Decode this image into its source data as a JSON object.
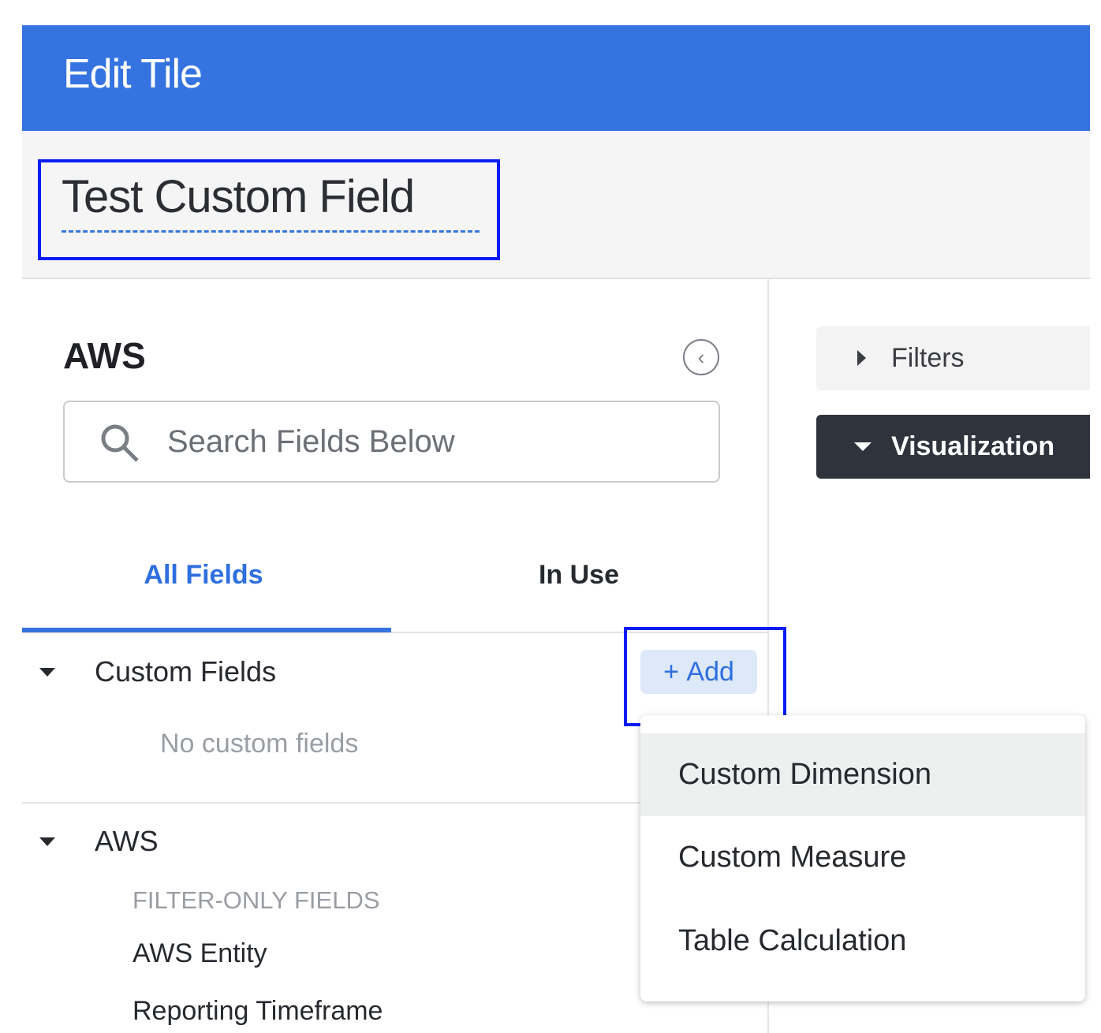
{
  "header": {
    "title": "Edit Tile",
    "color": "#3574e0"
  },
  "tile": {
    "title": "Test Custom Field"
  },
  "panel": {
    "heading": "AWS",
    "collapse_icon": "chevron-left-circle-icon",
    "search": {
      "placeholder": "Search Fields Below"
    },
    "tabs": [
      {
        "label": "All Fields",
        "active": true
      },
      {
        "label": "In Use",
        "active": false
      }
    ],
    "custom_fields": {
      "label": "Custom Fields",
      "add_label": "Add",
      "empty_text": "No custom fields"
    },
    "aws_section": {
      "label": "AWS",
      "group_label": "FILTER-ONLY FIELDS",
      "fields": [
        "AWS Entity",
        "Reporting Timeframe"
      ]
    }
  },
  "add_menu": {
    "items": [
      "Custom Dimension",
      "Custom Measure",
      "Table Calculation"
    ],
    "highlighted": "Custom Dimension"
  },
  "right": {
    "filters_label": "Filters",
    "visualization_label": "Visualization"
  },
  "highlight_color": "#0a1cf5"
}
